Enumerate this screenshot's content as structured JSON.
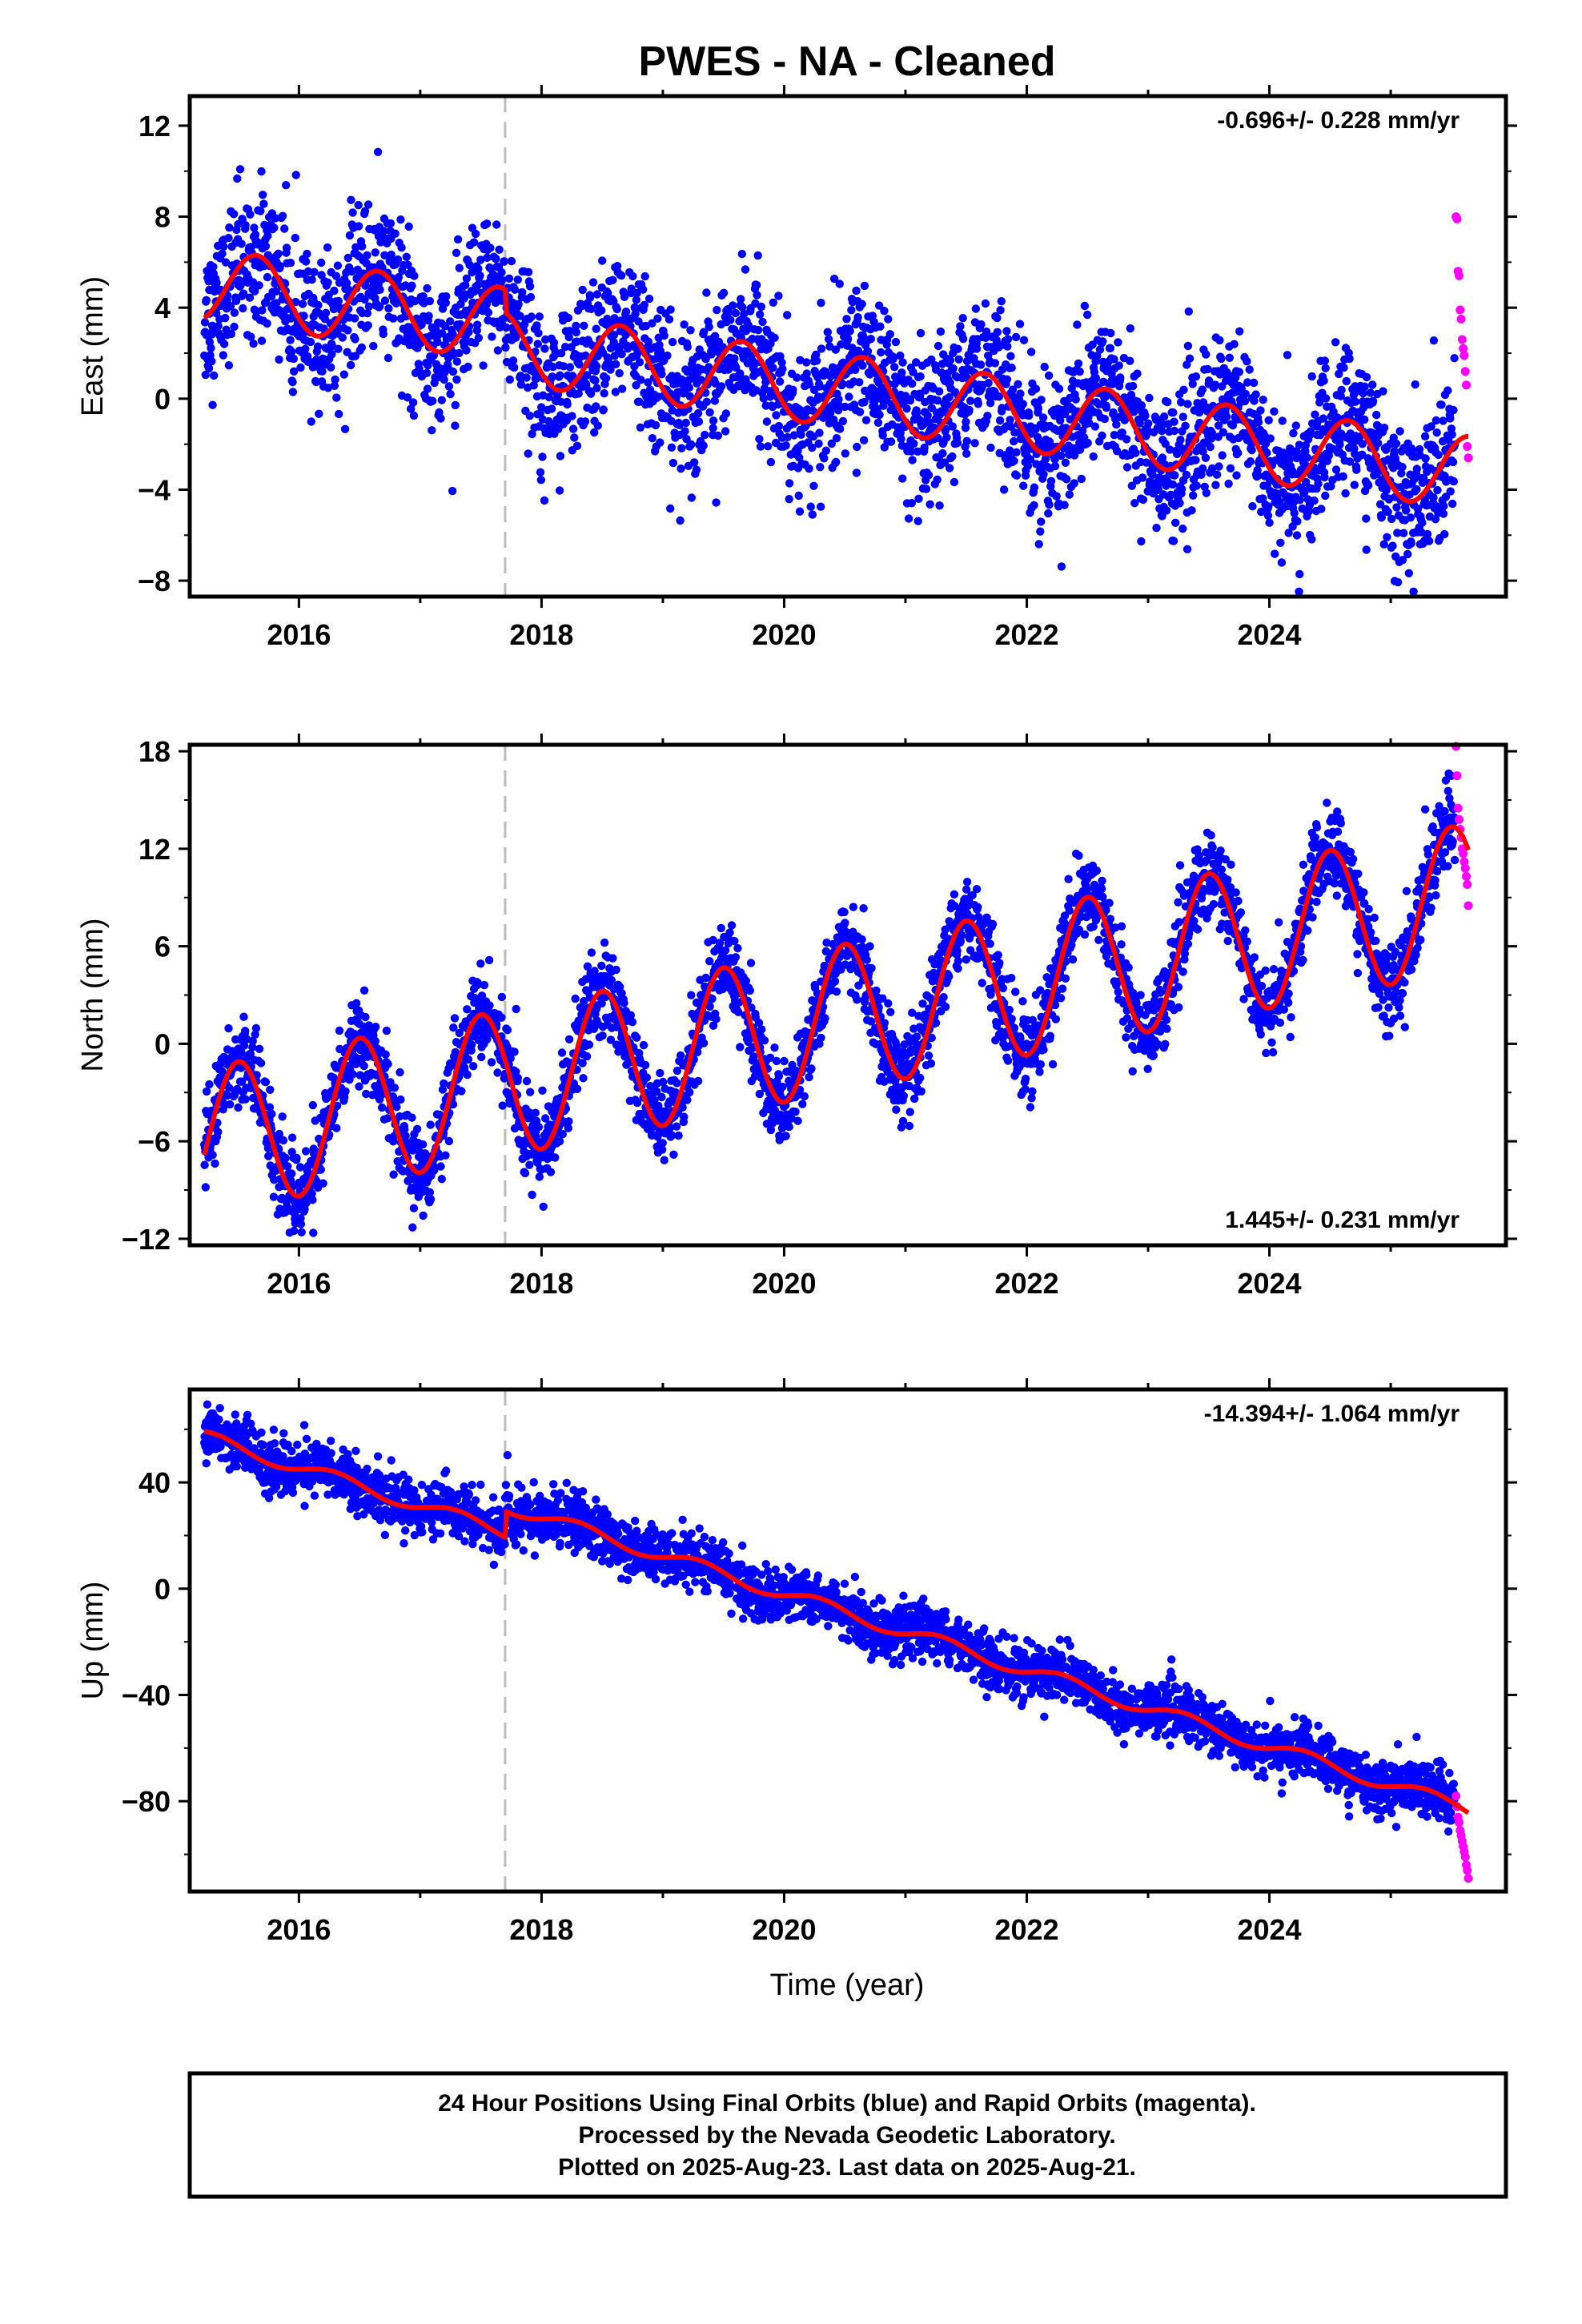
{
  "title": "PWES  - NA - Cleaned",
  "x_axis_label": "Time (year)",
  "footer": {
    "line1": "24 Hour Positions Using Final Orbits (blue) and Rapid Orbits (magenta).",
    "line2": "Processed by the Nevada Geodetic Laboratory.",
    "line3": "Plotted on 2025-Aug-23. Last data on 2025-Aug-21."
  },
  "colors": {
    "final_orbits": "#0000ff",
    "rapid_orbits": "#ff00ff",
    "model_fit": "#ff0000",
    "equipment_change": "#bbbbbb"
  },
  "chart_data": [
    {
      "type": "scatter",
      "component": "east",
      "ylabel": "East (mm)",
      "xlim": [
        2015.1,
        2025.95
      ],
      "ylim": [
        -8.7,
        13.3
      ],
      "xticks": [
        2016,
        2018,
        2020,
        2022,
        2024
      ],
      "yticks": [
        -8,
        -4,
        0,
        4,
        8,
        12
      ],
      "grid": false,
      "rate_text": "-0.696+/- 0.228 mmyr",
      "rate_label": "-0.696+/- 0.228 mm/yr",
      "rate_position": "top-right",
      "equipment_change": 2017.7,
      "final_data_end": 2025.53,
      "rapid_data_end": 2025.64,
      "model_fit": {
        "trend_start": 5.0,
        "rate": -0.696,
        "annual_amplitude": 1.6,
        "annual_phase_peak": 0.65,
        "offset_at_change": -1.0
      },
      "scatter_sigma": 1.6,
      "rapid_values": [
        8.0,
        7.9,
        5.6,
        5.4,
        3.9,
        3.5,
        2.6,
        2.2,
        1.9,
        1.2,
        0.6,
        -2.1,
        -2.6
      ]
    },
    {
      "type": "scatter",
      "component": "north",
      "ylabel": "North (mm)",
      "xlim": [
        2015.1,
        2025.95
      ],
      "ylim": [
        -12.4,
        18.4
      ],
      "xticks": [
        2016,
        2018,
        2020,
        2022,
        2024
      ],
      "yticks": [
        -12,
        -6,
        0,
        6,
        12,
        18
      ],
      "grid": false,
      "rate_label": "1.445+/- 0.231 mm/yr",
      "rate_position": "bottom-right",
      "equipment_change": 2017.7,
      "final_data_end": 2025.53,
      "rapid_data_end": 2025.64,
      "model_fit": {
        "trend_start": -6.0,
        "rate": 1.445,
        "annual_amplitude": 4.5,
        "annual_phase_peak": 0.5,
        "offset_at_change": 0.0
      },
      "scatter_sigma": 1.3,
      "rapid_values": [
        18.3,
        16.5,
        14.5,
        13.8,
        13.2,
        12.7,
        12.0,
        11.7,
        11.2,
        10.8,
        10.3,
        9.8,
        8.5
      ]
    },
    {
      "type": "scatter",
      "component": "up",
      "ylabel": "Up (mm)",
      "xlim": [
        2015.1,
        2025.95
      ],
      "ylim": [
        -114,
        75
      ],
      "xticks": [
        2016,
        2018,
        2020,
        2022,
        2024
      ],
      "yticks": [
        -80,
        -40,
        0,
        40
      ],
      "grid": false,
      "rate_label": "-14.394+/- 1.064 mm/yr",
      "rate_position": "top-right",
      "equipment_change": 2017.7,
      "final_data_end": 2025.53,
      "rapid_data_end": 2025.64,
      "model_fit": {
        "trend_start": 57.0,
        "rate": -14.394,
        "annual_amplitude": 2.5,
        "annual_phase_peak": 0.3,
        "offset_at_change": 10.0
      },
      "scatter_sigma": 5.0,
      "rapid_values": [
        -78,
        -82,
        -86,
        -88,
        -91,
        -93,
        -95,
        -97,
        -99,
        -101,
        -104,
        -106,
        -109
      ]
    }
  ]
}
